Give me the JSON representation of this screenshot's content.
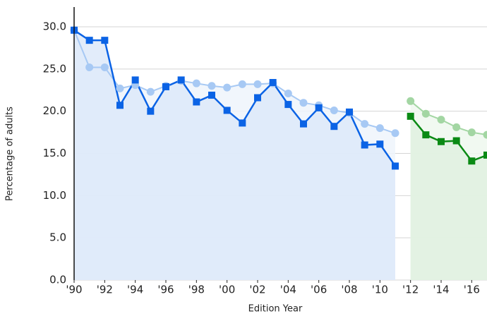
{
  "chart_data": {
    "type": "line",
    "x_label": "Edition Year",
    "y_label": "Percentage of adults",
    "xlim": [
      1990,
      2017
    ],
    "ylim": [
      0,
      30
    ],
    "xticks": [
      {
        "value": 1990,
        "label": "'90"
      },
      {
        "value": 1992,
        "label": "'92"
      },
      {
        "value": 1994,
        "label": "'94"
      },
      {
        "value": 1996,
        "label": "'96"
      },
      {
        "value": 1998,
        "label": "'98"
      },
      {
        "value": 2000,
        "label": "'00"
      },
      {
        "value": 2002,
        "label": "'02"
      },
      {
        "value": 2004,
        "label": "'04"
      },
      {
        "value": 2006,
        "label": "'06"
      },
      {
        "value": 2008,
        "label": "'08"
      },
      {
        "value": 2010,
        "label": "'10"
      },
      {
        "value": 2012,
        "label": "'12"
      },
      {
        "value": 2014,
        "label": "'14"
      },
      {
        "value": 2016,
        "label": "'16"
      }
    ],
    "yticks": [
      {
        "value": 0,
        "label": "0.0"
      },
      {
        "value": 5,
        "label": "5.0"
      },
      {
        "value": 10,
        "label": "10.0"
      },
      {
        "value": 15,
        "label": "15.0"
      },
      {
        "value": 20,
        "label": "20.0"
      },
      {
        "value": 25,
        "label": "25.0"
      },
      {
        "value": 30,
        "label": "30.0"
      }
    ],
    "grid": true,
    "series": [
      {
        "color": "#a7c9f4",
        "fill": "#eef4fc",
        "marker": "circle",
        "x": [
          1990,
          1991,
          1992,
          1993,
          1994,
          1995,
          1996,
          1997,
          1998,
          1999,
          2000,
          2001,
          2002,
          2003,
          2004,
          2005,
          2006,
          2007,
          2008,
          2009,
          2010,
          2011
        ],
        "values": [
          29.6,
          25.2,
          25.2,
          22.7,
          23.1,
          22.3,
          23.0,
          23.6,
          23.3,
          23.0,
          22.8,
          23.2,
          23.2,
          23.3,
          22.1,
          21.0,
          20.7,
          20.1,
          19.8,
          18.5,
          18.0,
          17.4
        ]
      },
      {
        "color": "#0b63e5",
        "fill": "#dde9f9",
        "marker": "square",
        "x": [
          1990,
          1991,
          1992,
          1993,
          1994,
          1995,
          1996,
          1997,
          1998,
          1999,
          2000,
          2001,
          2002,
          2003,
          2004,
          2005,
          2006,
          2007,
          2008,
          2009,
          2010,
          2011
        ],
        "values": [
          29.6,
          28.4,
          28.4,
          20.7,
          23.7,
          20.0,
          22.9,
          23.7,
          21.1,
          21.9,
          20.1,
          18.6,
          21.6,
          23.4,
          20.8,
          18.5,
          20.4,
          18.2,
          19.9,
          16.0,
          16.1,
          13.5
        ]
      },
      {
        "color": "#a3d6a3",
        "fill": "#eef8ee",
        "marker": "circle",
        "x": [
          2012,
          2013,
          2014,
          2015,
          2016,
          2017
        ],
        "values": [
          21.2,
          19.7,
          19.0,
          18.1,
          17.5,
          17.2
        ]
      },
      {
        "color": "#0a8a14",
        "fill": "#e0f1e0",
        "marker": "square",
        "x": [
          2012,
          2013,
          2014,
          2015,
          2016,
          2017
        ],
        "values": [
          19.4,
          17.2,
          16.4,
          16.5,
          14.1,
          14.8
        ]
      }
    ]
  }
}
